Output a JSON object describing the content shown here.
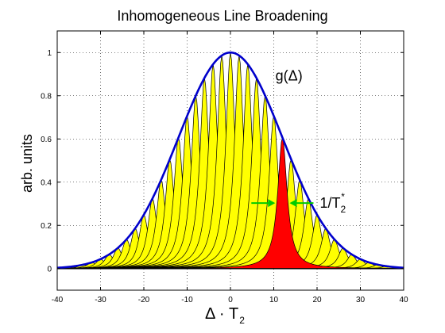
{
  "chart_data": {
    "type": "area",
    "title": "Inhomogeneous Line Broadening",
    "xlabel_main": "Δ · T",
    "xlabel_sub": "2",
    "ylabel": "arb. units",
    "xlim": [
      -40,
      40
    ],
    "ylim": [
      -0.1,
      1.1
    ],
    "xticks": [
      "-40",
      "-30",
      "-20",
      "-10",
      "0",
      "10",
      "20",
      "30",
      "40"
    ],
    "yticks": [
      "0",
      "0.2",
      "0.4",
      "0.6",
      "0.8",
      "1"
    ],
    "grid": true,
    "envelope": {
      "label": "g(Δ)",
      "center": 0,
      "sigma": 12,
      "amplitude": 1.0,
      "color": "#0000cc"
    },
    "lines": {
      "centers": [
        -36,
        -34,
        -32,
        -30,
        -28,
        -26,
        -24,
        -22,
        -20,
        -18,
        -16,
        -14,
        -12,
        -10,
        -8,
        -6,
        -4,
        -2,
        0,
        2,
        4,
        6,
        8,
        10,
        12,
        14,
        16,
        18,
        20,
        22,
        24,
        26,
        28,
        30,
        32,
        34,
        36
      ],
      "shape": "lorentzian",
      "half_width": 1.3,
      "fill_color": "#ffff00",
      "highlight_center": 12,
      "highlight_color": "#ff0000"
    },
    "annotation": {
      "text_main": "1/T",
      "text_sub": "2",
      "text_sup": "*",
      "arrow_color": "#00cc00"
    }
  }
}
